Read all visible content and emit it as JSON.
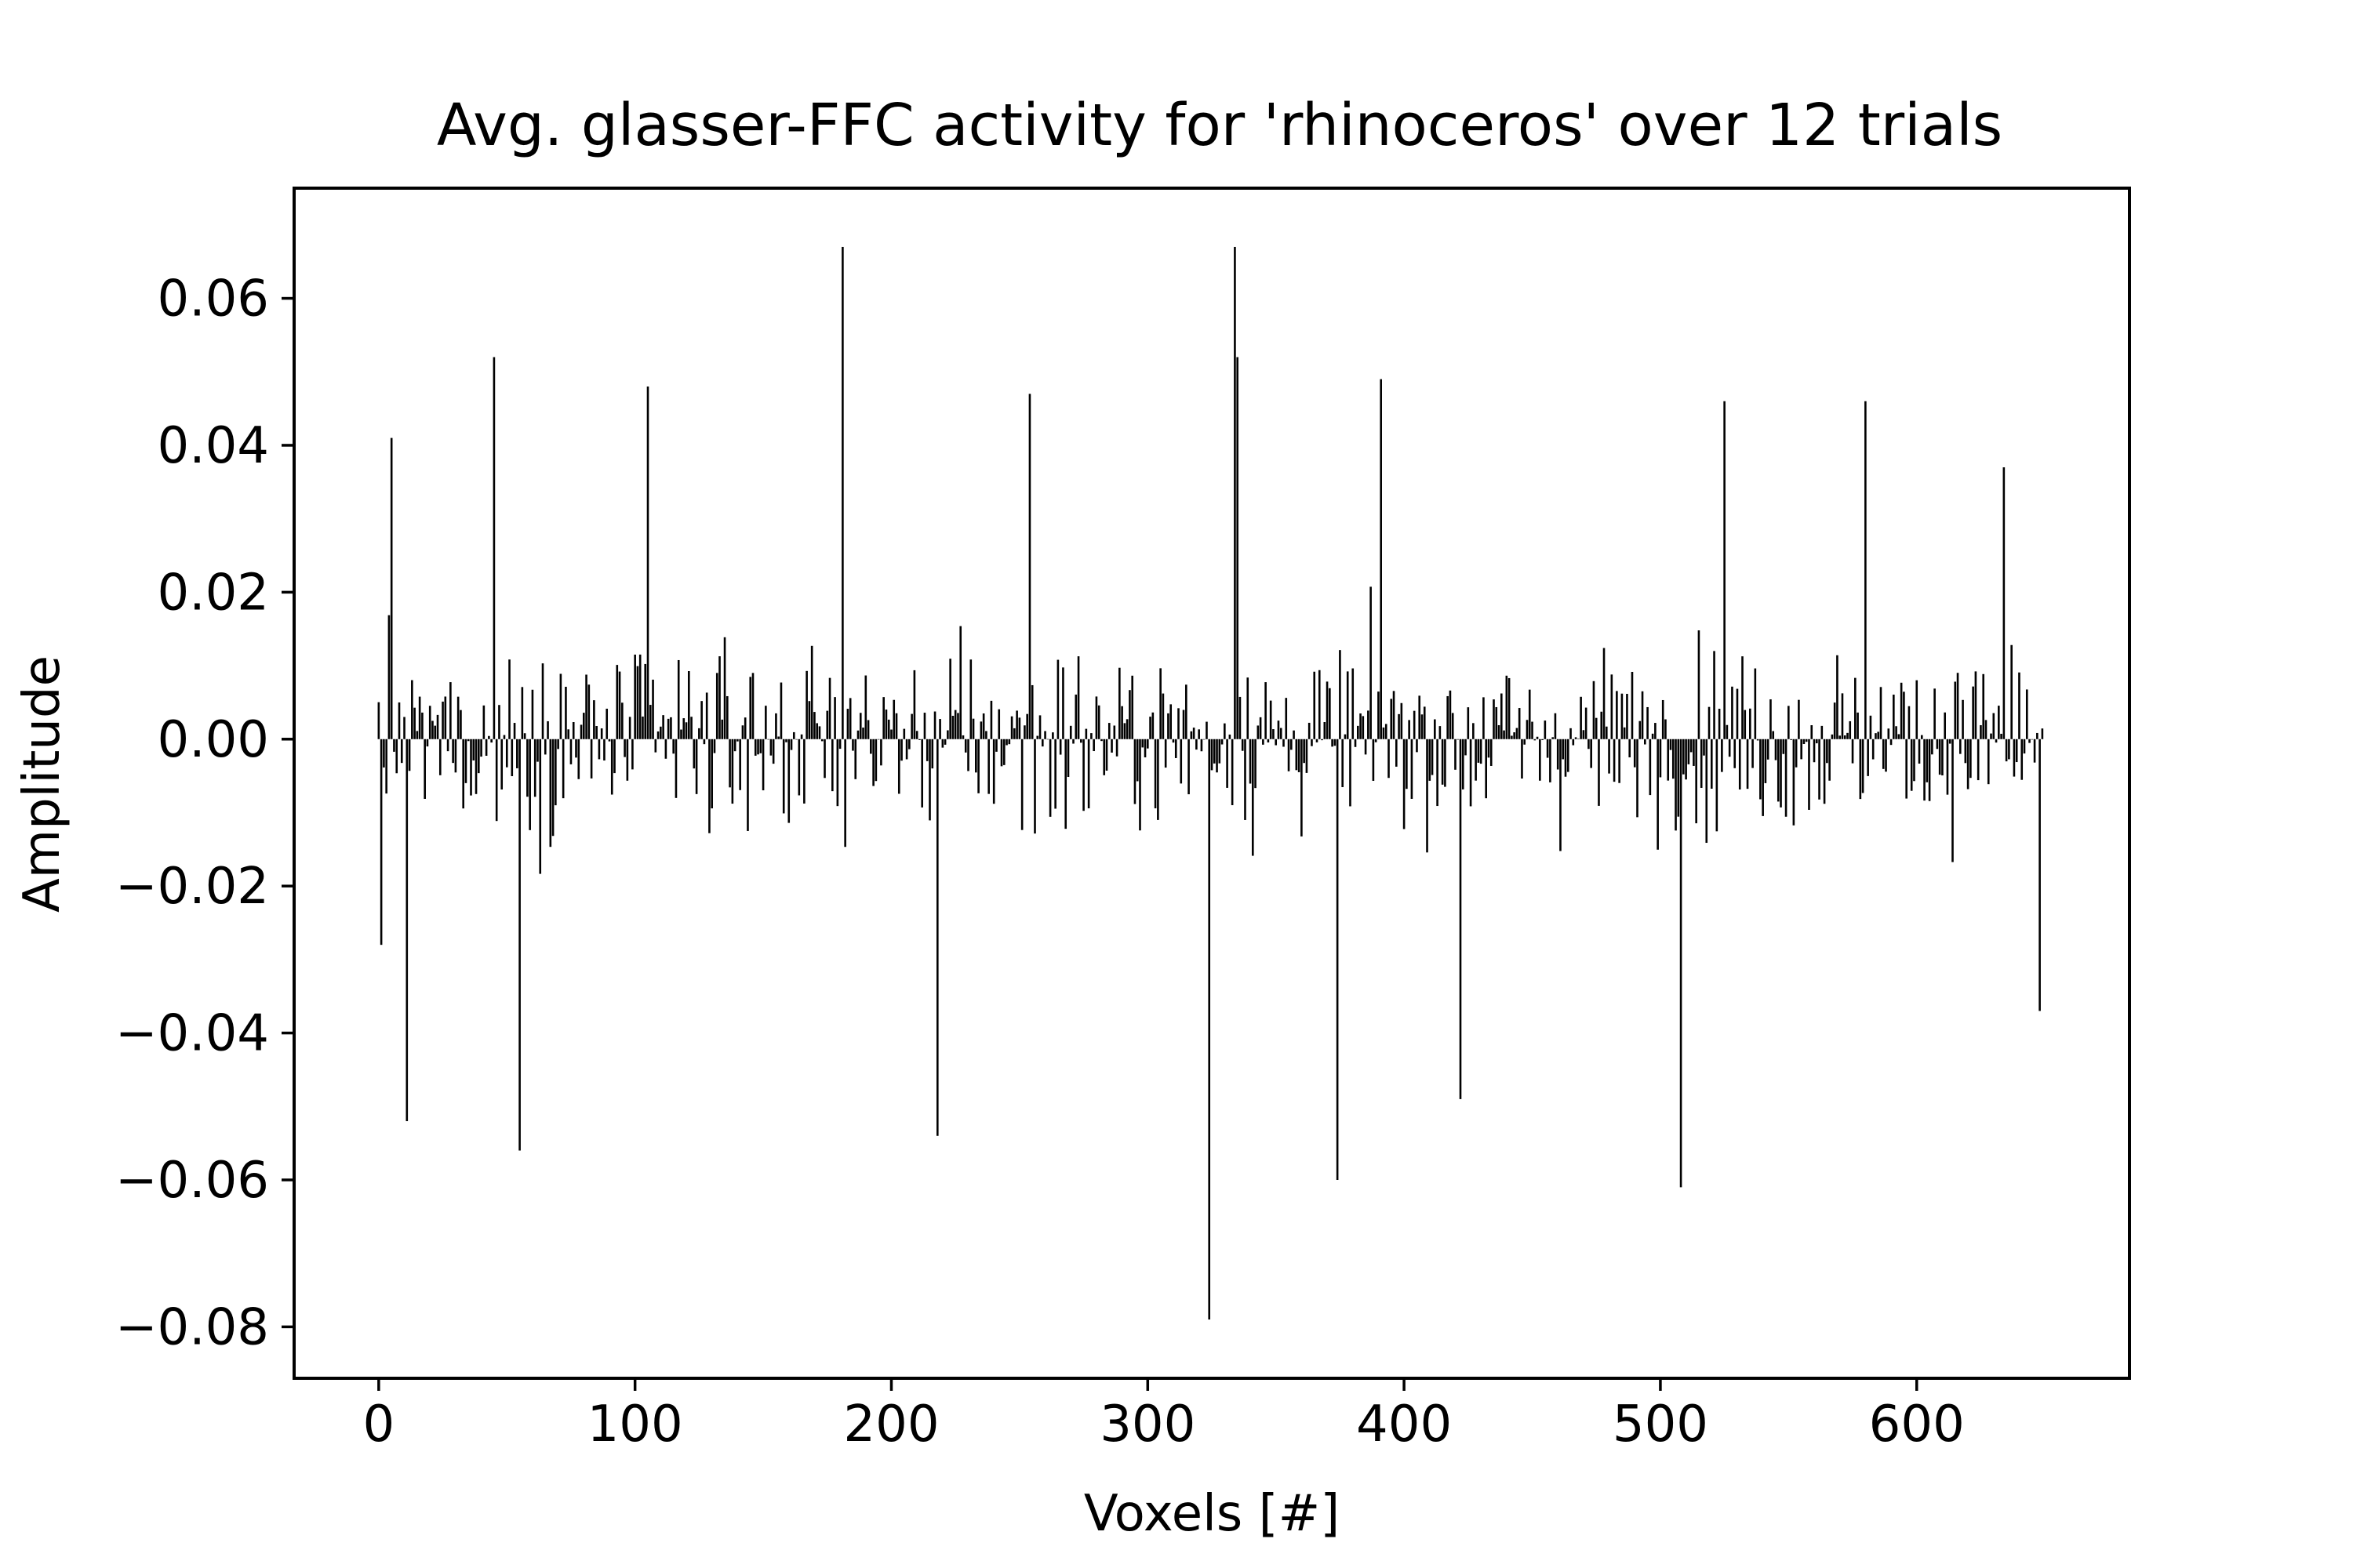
{
  "chart_data": {
    "type": "bar",
    "title": "Avg. glasser-FFC activity for 'rhinoceros' over 12 trials",
    "xlabel": "Voxels [#]",
    "ylabel": "Amplitude",
    "xlim": [
      -33,
      683
    ],
    "ylim": [
      -0.087,
      0.075
    ],
    "xticks": [
      0,
      100,
      200,
      300,
      400,
      500,
      600
    ],
    "xtick_labels": [
      "0",
      "100",
      "200",
      "300",
      "400",
      "500",
      "600"
    ],
    "yticks": [
      -0.08,
      -0.06,
      -0.04,
      -0.02,
      0.0,
      0.02,
      0.04,
      0.06
    ],
    "ytick_labels": [
      "−0.08",
      "−0.06",
      "−0.04",
      "−0.02",
      "0.00",
      "0.02",
      "0.04",
      "0.06"
    ],
    "grid": false,
    "legend": "none",
    "bar_color": "#000000",
    "n_voxels": 650,
    "notable_values": [
      {
        "x": 1,
        "y": -0.028
      },
      {
        "x": 5,
        "y": 0.041
      },
      {
        "x": 11,
        "y": -0.052
      },
      {
        "x": 45,
        "y": 0.052
      },
      {
        "x": 55,
        "y": -0.056
      },
      {
        "x": 105,
        "y": 0.048
      },
      {
        "x": 181,
        "y": 0.067
      },
      {
        "x": 218,
        "y": -0.054
      },
      {
        "x": 254,
        "y": 0.047
      },
      {
        "x": 324,
        "y": -0.079
      },
      {
        "x": 334,
        "y": 0.067
      },
      {
        "x": 335,
        "y": 0.052
      },
      {
        "x": 374,
        "y": -0.06
      },
      {
        "x": 391,
        "y": 0.049
      },
      {
        "x": 422,
        "y": -0.049
      },
      {
        "x": 508,
        "y": -0.061
      },
      {
        "x": 525,
        "y": 0.046
      },
      {
        "x": 580,
        "y": 0.046
      },
      {
        "x": 634,
        "y": 0.037
      },
      {
        "x": 648,
        "y": -0.037
      }
    ]
  }
}
